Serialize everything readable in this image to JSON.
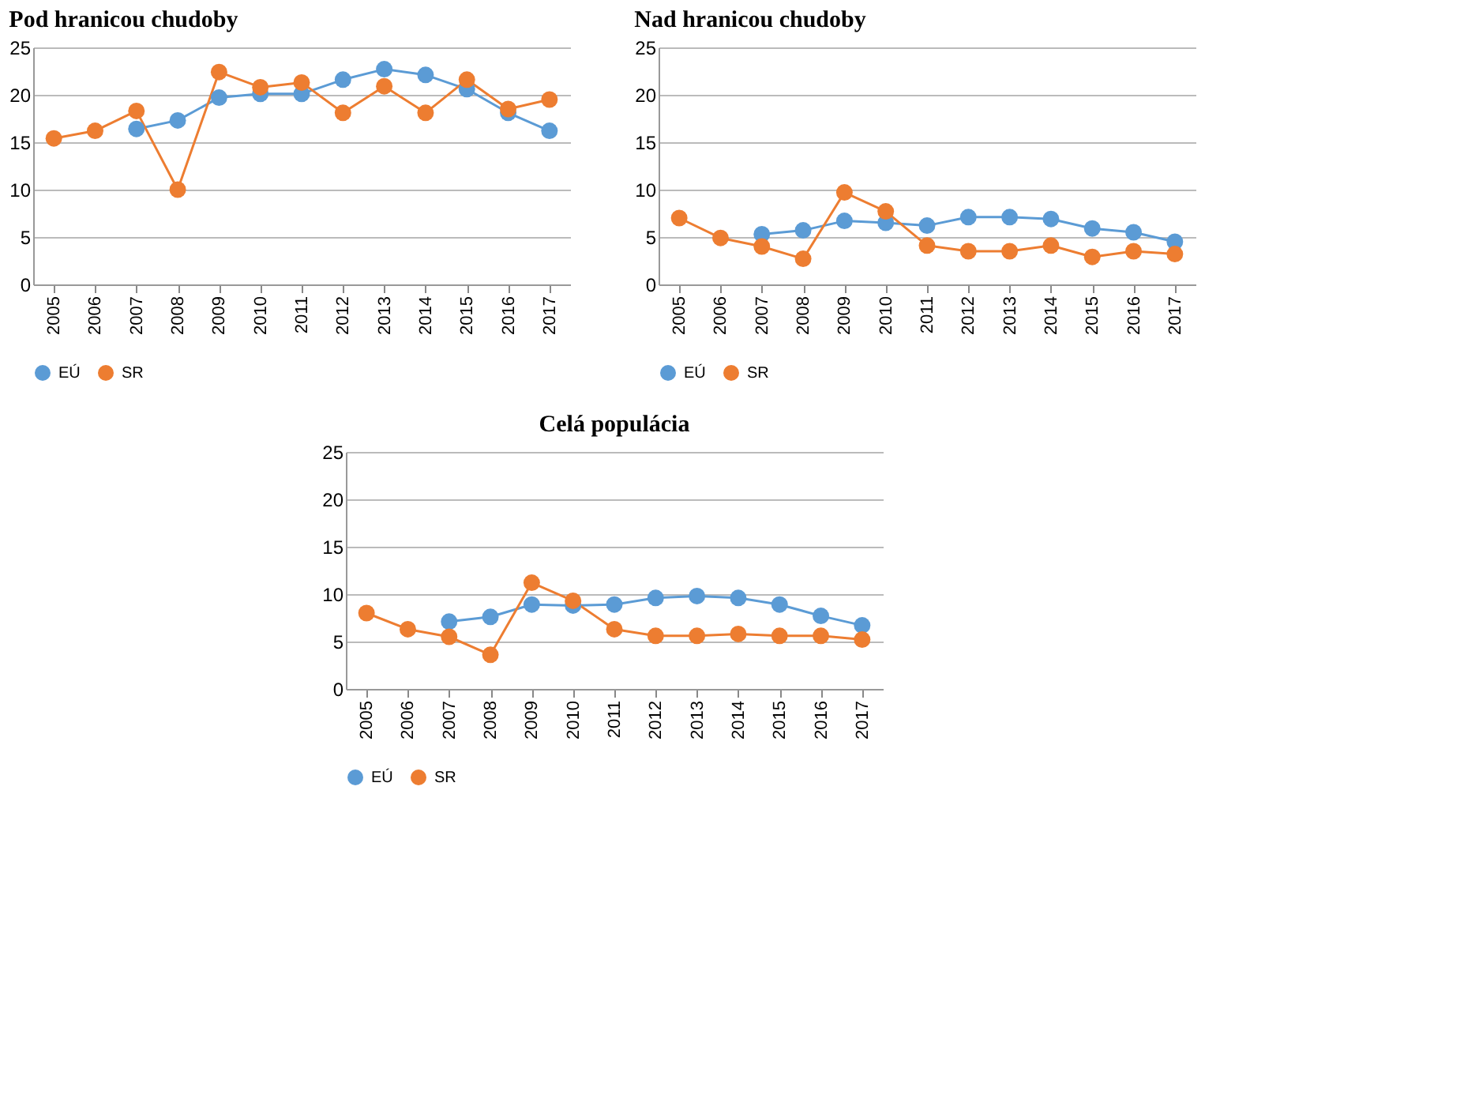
{
  "chart_data": [
    {
      "type": "line",
      "title": "Pod hranicou chudoby",
      "categories": [
        "2005",
        "2006",
        "2007",
        "2008",
        "2009",
        "2010",
        "2011",
        "2012",
        "2013",
        "2014",
        "2015",
        "2016",
        "2017"
      ],
      "ylim": [
        0,
        25
      ],
      "yticks": [
        0,
        5,
        10,
        15,
        20,
        25
      ],
      "grid": "y",
      "legend": "bottom",
      "marker": "circle",
      "series": [
        {
          "name": "EÚ",
          "color": "#5b9bd5",
          "values": [
            null,
            null,
            16.4,
            17.3,
            19.7,
            20.1,
            20.1,
            21.6,
            22.7,
            22.1,
            20.6,
            18.1,
            16.2
          ]
        },
        {
          "name": "SR",
          "color": "#ed7d31",
          "values": [
            15.4,
            16.2,
            18.3,
            10.0,
            22.4,
            20.8,
            21.3,
            18.1,
            20.9,
            18.1,
            21.6,
            18.5,
            19.5
          ]
        }
      ]
    },
    {
      "type": "line",
      "title": "Nad hranicou chudoby",
      "categories": [
        "2005",
        "2006",
        "2007",
        "2008",
        "2009",
        "2010",
        "2011",
        "2012",
        "2013",
        "2014",
        "2015",
        "2016",
        "2017"
      ],
      "ylim": [
        0,
        25
      ],
      "yticks": [
        0,
        5,
        10,
        15,
        20,
        25
      ],
      "grid": "y",
      "legend": "bottom",
      "marker": "circle",
      "series": [
        {
          "name": "EÚ",
          "color": "#5b9bd5",
          "values": [
            null,
            null,
            5.3,
            5.7,
            6.7,
            6.5,
            6.2,
            7.1,
            7.1,
            6.9,
            5.9,
            5.5,
            4.5
          ]
        },
        {
          "name": "SR",
          "color": "#ed7d31",
          "values": [
            7.0,
            4.9,
            4.0,
            2.7,
            9.7,
            7.7,
            4.1,
            3.5,
            3.5,
            4.1,
            2.9,
            3.5,
            3.2
          ]
        }
      ]
    },
    {
      "type": "line",
      "title": "Celá populácia",
      "categories": [
        "2005",
        "2006",
        "2007",
        "2008",
        "2009",
        "2010",
        "2011",
        "2012",
        "2013",
        "2014",
        "2015",
        "2016",
        "2017"
      ],
      "ylim": [
        0,
        25
      ],
      "yticks": [
        0,
        5,
        10,
        15,
        20,
        25
      ],
      "grid": "y",
      "legend": "bottom",
      "marker": "circle",
      "series": [
        {
          "name": "EÚ",
          "color": "#5b9bd5",
          "values": [
            null,
            null,
            7.1,
            7.6,
            8.9,
            8.8,
            8.9,
            9.6,
            9.8,
            9.6,
            8.9,
            7.7,
            6.7
          ]
        },
        {
          "name": "SR",
          "color": "#ed7d31",
          "values": [
            8.0,
            6.3,
            5.5,
            3.6,
            11.2,
            9.3,
            6.3,
            5.6,
            5.6,
            5.8,
            5.6,
            5.6,
            5.2
          ]
        }
      ]
    }
  ]
}
